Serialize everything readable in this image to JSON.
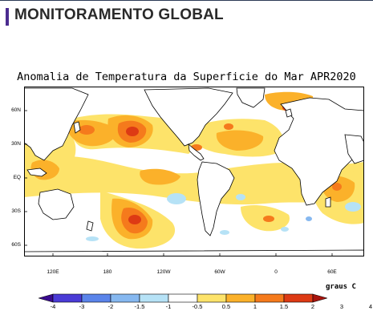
{
  "header": {
    "title": "MONITORAMENTO GLOBAL"
  },
  "map": {
    "title": "Anomalia de Temperatura da Superficie do Mar APR2020",
    "lat_labels": [
      "60N",
      "30N",
      "EQ",
      "30S",
      "60S"
    ],
    "lon_labels": [
      "120E",
      "180",
      "120W",
      "60W",
      "0",
      "60E"
    ],
    "units_label": "graus C",
    "colorbar": {
      "labels": [
        "-4",
        "-3",
        "-2",
        "-1.5",
        "-1",
        "-0.5",
        "0.5",
        "1",
        "1.5",
        "2",
        "3",
        "4"
      ],
      "colors": [
        "#3a0a8f",
        "#4a3bd6",
        "#5a84ea",
        "#86b8f0",
        "#b6e2f6",
        "#ffffff",
        "#fde36a",
        "#fbb12a",
        "#f57a1c",
        "#dd3a14",
        "#a8140e"
      ]
    },
    "colors": {
      "ocean_neutral": "#ffffff",
      "coastline": "#000000",
      "warm_light": "#fde36a",
      "warm": "#fbb12a",
      "warm_strong": "#f57a1c",
      "hot": "#dd3a14",
      "cool_light": "#b6e2f6",
      "cool": "#86b8f0"
    }
  }
}
